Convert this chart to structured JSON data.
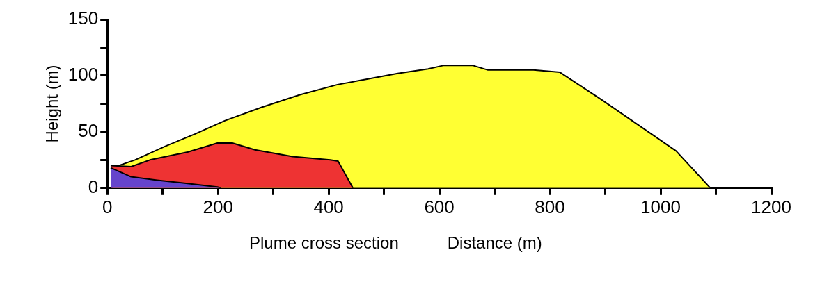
{
  "chart_data": {
    "type": "area",
    "xlabel": "Distance (m)",
    "ylabel": "Height (m)",
    "annotations": [
      "Plume cross section"
    ],
    "marker": "none",
    "grid": false,
    "legend": false,
    "xlim": [
      0,
      1200
    ],
    "ylim": [
      0,
      150
    ],
    "xticks": [
      0,
      {
        "value": 100,
        "label": null
      },
      200,
      {
        "value": 300,
        "label": null
      },
      400,
      {
        "value": 500,
        "label": null
      },
      600,
      {
        "value": 700,
        "label": null
      },
      800,
      {
        "value": 900,
        "label": null
      },
      1000,
      {
        "value": 1100,
        "label": null
      },
      1200
    ],
    "yticks": [
      0,
      {
        "value": 25,
        "label": null
      },
      50,
      {
        "value": 75,
        "label": null
      },
      100,
      {
        "value": 125,
        "label": null
      },
      150
    ],
    "series": [
      {
        "color": "#ffff33",
        "x": [
          9,
          50,
          104,
          158,
          213,
          280,
          348,
          416,
          471,
          525,
          580,
          607,
          661,
          688,
          770,
          818,
          892,
          960,
          1028,
          1090
        ],
        "values": [
          18,
          25,
          37,
          48,
          60,
          72,
          83,
          92,
          97,
          102,
          106,
          109,
          109,
          105,
          105,
          103,
          79,
          56,
          33,
          0
        ]
      },
      {
        "color": "#ee3333",
        "x": [
          6,
          43,
          77,
          145,
          199,
          226,
          267,
          335,
          403,
          417,
          444
        ],
        "values": [
          20,
          19,
          25,
          32,
          40,
          40,
          34,
          28,
          25,
          24,
          0
        ]
      },
      {
        "color": "#6644cc",
        "x": [
          6,
          43,
          90,
          145,
          199,
          206
        ],
        "values": [
          18,
          10,
          7,
          4,
          1,
          0
        ]
      }
    ]
  }
}
